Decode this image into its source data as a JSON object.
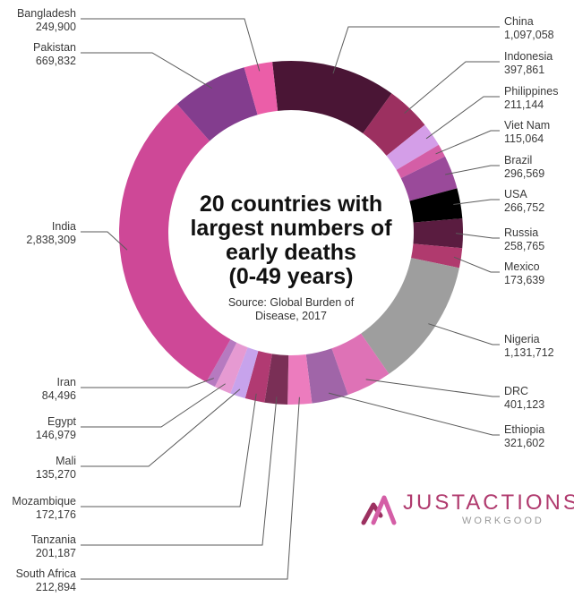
{
  "chart_data": {
    "type": "donut",
    "title": "20 countries with largest numbers of early deaths (0-49 years)",
    "title_lines": [
      "20 countries with",
      "largest numbers of",
      "early deaths",
      "(0-49 years)"
    ],
    "source_lines": [
      "Source: Global Burden of",
      "Disease, 2017"
    ],
    "slices": [
      {
        "name": "China",
        "value_label": "1,097,058",
        "value": 1097058,
        "color": "#4a1535"
      },
      {
        "name": "Indonesia",
        "value_label": "397,861",
        "value": 397861,
        "color": "#9c3060"
      },
      {
        "name": "Philippines",
        "value_label": "211,144",
        "value": 211144,
        "color": "#d49ee8"
      },
      {
        "name": "Viet Nam",
        "value_label": "115,064",
        "value": 115064,
        "color": "#d45ea6"
      },
      {
        "name": "Brazil",
        "value_label": "296,569",
        "value": 296569,
        "color": "#9a4a9a"
      },
      {
        "name": "USA",
        "value_label": "266,752",
        "value": 266752,
        "color": "#000000"
      },
      {
        "name": "Russia",
        "value_label": "258,765",
        "value": 258765,
        "color": "#5a1c40"
      },
      {
        "name": "Mexico",
        "value_label": "173,639",
        "value": 173639,
        "color": "#b03a6e"
      },
      {
        "name": "Nigeria",
        "value_label": "1,131,712",
        "value": 1131712,
        "color": "#9e9e9e"
      },
      {
        "name": "DRC",
        "value_label": "401,123",
        "value": 401123,
        "color": "#de72b6"
      },
      {
        "name": "Ethiopia",
        "value_label": "321,602",
        "value": 321602,
        "color": "#a065a8"
      },
      {
        "name": "South Africa",
        "value_label": "212,894",
        "value": 212894,
        "color": "#ec7cbe"
      },
      {
        "name": "Tanzania",
        "value_label": "201,187",
        "value": 201187,
        "color": "#7a2f56"
      },
      {
        "name": "Mozambique",
        "value_label": "172,176",
        "value": 172176,
        "color": "#b13a72"
      },
      {
        "name": "Mali",
        "value_label": "135,270",
        "value": 135270,
        "color": "#c7a3ec"
      },
      {
        "name": "Egypt",
        "value_label": "146,979",
        "value": 146979,
        "color": "#e69ad2"
      },
      {
        "name": "Iran",
        "value_label": "84,496",
        "value": 84496,
        "color": "#b67ac0"
      },
      {
        "name": "India",
        "value_label": "2,838,309",
        "value": 2838309,
        "color": "#ce4897"
      },
      {
        "name": "Pakistan",
        "value_label": "669,832",
        "value": 669832,
        "color": "#833d8e"
      },
      {
        "name": "Bangladesh",
        "value_label": "249,900",
        "value": 249900,
        "color": "#eb5ea8"
      }
    ]
  },
  "logo": {
    "brand_main": "JUSTACTIONS",
    "brand_sub": "WORKGOOD",
    "colors": {
      "primary": "#b03a6e",
      "secondary": "#999999"
    }
  }
}
